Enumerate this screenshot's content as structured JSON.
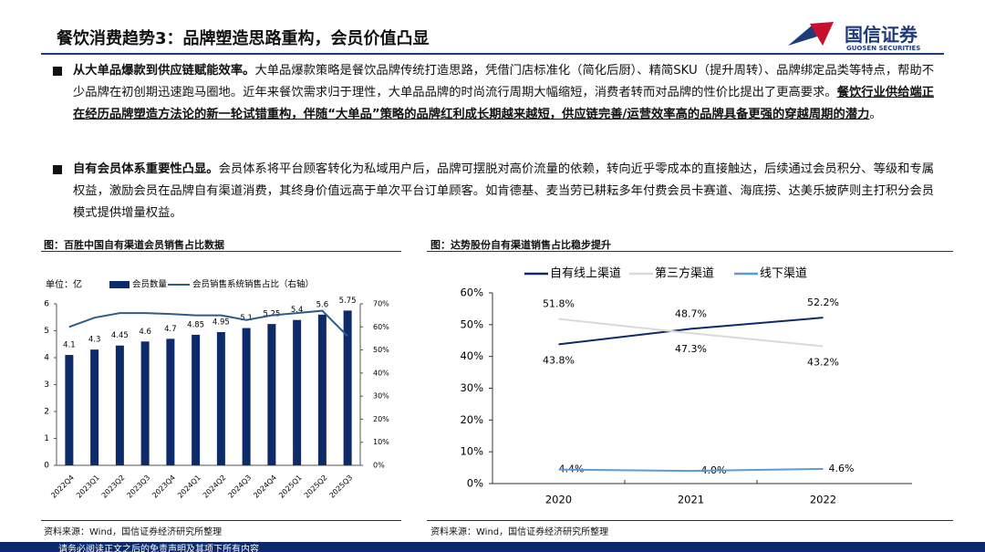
{
  "header": {
    "title": "餐饮消费趋势3：品牌塑造思路重构，会员价值凸显",
    "logo_name": "国信证券",
    "logo_en": "GUOSEN SECURITIES"
  },
  "bullets": [
    {
      "lead": "从大单品爆款到供应链赋能效率。",
      "text": "大单品爆款策略是餐饮品牌传统打造思路，凭借门店标准化（简化后厨）、精简SKU（提升周转）、品牌绑定品类等特点，帮助不少品牌在初创期迅速跑马圈地。近年来餐饮需求归于理性，大单品品牌的时尚流行周期大幅缩短，消费者转而对品牌的性价比提出了更高要求。",
      "emphasis": "餐饮行业供给端正在经历品牌塑造方法论的新一轮试错重构，伴随“大单品”策略的品牌红利成长期越来越短，供应链完善/运营效率高的品牌具备更强的穿越周期的潜力",
      "tail": "。"
    },
    {
      "lead": "自有会员体系重要性凸显。",
      "text": "会员体系将平台顾客转化为私域用户后，品牌可摆脱对高价流量的依赖，转向近乎零成本的直接触达，后续通过会员积分、等级和专属权益，激励会员在品牌自有渠道消费，其终身价值远高于单次平台订单顾客。如肯德基、麦当劳已耕耘多年付费会员卡赛道、海底捞、达美乐披萨则主打积分会员模式提供增量权益。"
    }
  ],
  "chart_data": [
    {
      "type": "combo",
      "title": "图：百胜中国自有渠道会员销售占比数据",
      "unit_label": "单位：亿",
      "categories": [
        "2022Q4",
        "2023Q1",
        "2023Q2",
        "2023Q3",
        "2023Q4",
        "2024Q1",
        "2024Q2",
        "2024Q3",
        "2024Q4",
        "2025Q1",
        "2025Q2",
        "2025Q3"
      ],
      "series": [
        {
          "name": "会员数量",
          "kind": "bar",
          "color": "#0d2a6b",
          "values": [
            4.1,
            4.3,
            4.45,
            4.6,
            4.7,
            4.85,
            4.95,
            5.1,
            5.25,
            5.4,
            5.6,
            5.75
          ]
        },
        {
          "name": "会员销售系统销售占比（右轴）",
          "kind": "line",
          "axis": "y2",
          "color": "#2e5c8a",
          "values": [
            60,
            64,
            66,
            66,
            65.6,
            65,
            65,
            63,
            65,
            66,
            67,
            56
          ]
        }
      ],
      "ylim": [
        0,
        6
      ],
      "yticks": [
        0,
        1,
        2,
        3,
        4,
        5,
        6
      ],
      "y2lim": [
        0,
        70
      ],
      "y2ticks": [
        {
          "value": 0,
          "label": "0%"
        },
        {
          "value": 10,
          "label": "10%"
        },
        {
          "value": 20,
          "label": "20%"
        },
        {
          "value": 30,
          "label": "30%"
        },
        {
          "value": 40,
          "label": "40%"
        },
        {
          "value": 50,
          "label": "50%"
        },
        {
          "value": 60,
          "label": "60%"
        },
        {
          "value": 70,
          "label": "70%"
        }
      ],
      "grid": false,
      "source": "资料来源：Wind，国信证券经济研究所整理"
    },
    {
      "type": "line",
      "title": "图：达势股份自有渠道销售占比稳步提升",
      "categories": [
        "2020",
        "2021",
        "2022"
      ],
      "series": [
        {
          "name": "自有线上渠道",
          "color": "#0d2a6b",
          "values": [
            43.8,
            48.7,
            52.2
          ],
          "value_labels": [
            "43.8%",
            "48.7%",
            "52.2%"
          ]
        },
        {
          "name": "第三方渠道",
          "color": "#d9d9d9",
          "values": [
            51.8,
            47.3,
            43.2
          ],
          "value_labels": [
            "51.8%",
            "47.3%",
            "43.2%"
          ]
        },
        {
          "name": "线下渠道",
          "color": "#5b9bd5",
          "values": [
            4.4,
            4.0,
            4.6
          ],
          "value_labels": [
            "4.4%",
            "4.0%",
            "4.6%"
          ]
        }
      ],
      "ylim": [
        0,
        60
      ],
      "yticks": [
        {
          "value": 0,
          "label": "0%"
        },
        {
          "value": 10,
          "label": "10%"
        },
        {
          "value": 20,
          "label": "20%"
        },
        {
          "value": 30,
          "label": "30%"
        },
        {
          "value": 40,
          "label": "40%"
        },
        {
          "value": 50,
          "label": "50%"
        },
        {
          "value": 60,
          "label": "60%"
        }
      ],
      "grid": false,
      "source": "资料来源：Wind，国信证券经济研究所整理"
    }
  ],
  "footer": {
    "disclaimer": "请务必阅读正文之后的免责声明及其项下所有内容"
  }
}
